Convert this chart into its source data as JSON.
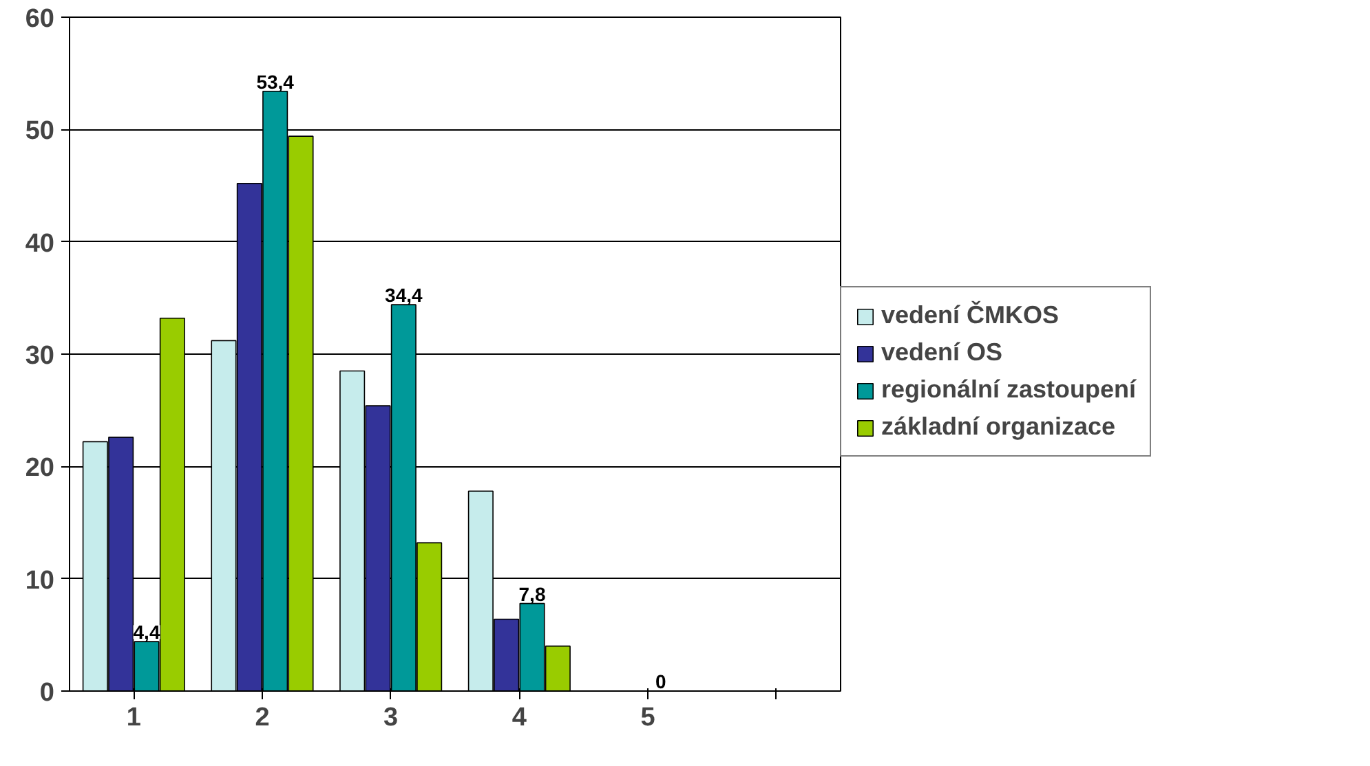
{
  "chart_data": {
    "type": "bar",
    "categories": [
      "1",
      "2",
      "3",
      "4",
      "5",
      null
    ],
    "series": [
      {
        "name": "vedení ČMKOS",
        "color": "#c6ecec",
        "values": [
          22.2,
          31.2,
          28.5,
          17.8,
          0,
          null
        ]
      },
      {
        "name": "vedení OS",
        "color": "#333399",
        "values": [
          22.6,
          45.2,
          25.4,
          6.4,
          0,
          null
        ]
      },
      {
        "name": "regionální zastoupení",
        "color": "#009999",
        "values": [
          4.4,
          53.4,
          34.4,
          7.8,
          0,
          null
        ],
        "value_labels": [
          "4,4",
          "53,4",
          "34,4",
          "7,8",
          "0",
          null
        ]
      },
      {
        "name": "základní organizace",
        "color": "#99cc00",
        "values": [
          33.2,
          49.4,
          13.2,
          4.0,
          0,
          null
        ]
      }
    ],
    "ylim": [
      0,
      60
    ],
    "yticks": [
      0,
      10,
      20,
      30,
      40,
      50,
      60
    ],
    "grid": "y",
    "legend": "right"
  }
}
